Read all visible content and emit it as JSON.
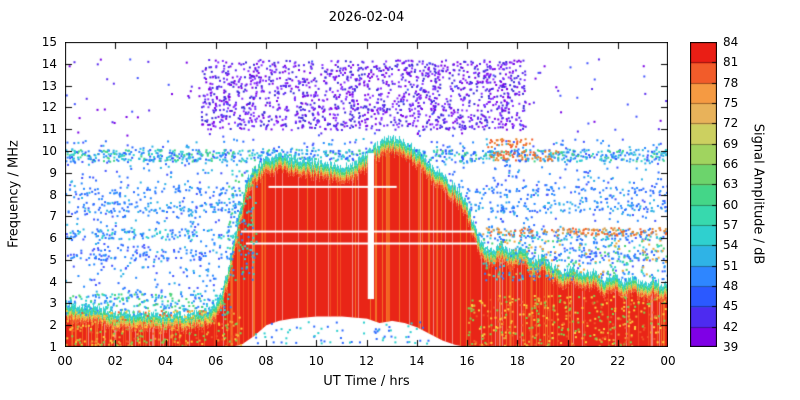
{
  "figure": {
    "background": "#ffffff"
  },
  "chart_data": {
    "type": "heatmap",
    "title": "2026-02-04",
    "xlabel": "UT Time / hrs",
    "ylabel": "Frequency / MHz",
    "xlim": [
      0,
      24
    ],
    "ylim": [
      1,
      15
    ],
    "grid": false,
    "x_tick_labels": [
      "00",
      "02",
      "04",
      "06",
      "08",
      "10",
      "12",
      "14",
      "16",
      "18",
      "20",
      "22",
      "00"
    ],
    "x_tick_values": [
      0,
      2,
      4,
      6,
      8,
      10,
      12,
      14,
      16,
      18,
      20,
      22,
      24
    ],
    "y_tick_values": [
      1,
      2,
      3,
      4,
      5,
      6,
      7,
      8,
      9,
      10,
      11,
      12,
      13,
      14,
      15
    ],
    "colorbar": {
      "label": "Signal Amplitude / dB",
      "min": 39,
      "max": 84,
      "step": 3,
      "ticks": [
        39,
        42,
        45,
        48,
        51,
        54,
        57,
        60,
        63,
        66,
        69,
        72,
        75,
        78,
        81,
        84
      ],
      "colors": [
        "#7f00e6",
        "#4d2bf0",
        "#2b59ff",
        "#2e86ff",
        "#2fb3e6",
        "#2fd0cf",
        "#37d9ae",
        "#44d688",
        "#6cd46c",
        "#a0d45f",
        "#ccd060",
        "#e8b25a",
        "#f59a42",
        "#f25c2a",
        "#ea1e15"
      ]
    },
    "echo_region": {
      "description": "ionospheric echo trace: strong red band 1-3 MHz at night, dome up to ~10.6 MHz between ~06:30 and ~16:30 UT",
      "core_color": "#e92517",
      "top_jitter": 0.35,
      "striation_prob": 0.25,
      "striation_alpha": 0.45,
      "striation_colors": [
        "#ffb030",
        "#ffffff",
        "#ff8030",
        "#ffd040"
      ],
      "edge_layers": [
        {
          "color": "#35cfd0",
          "mhz": 0.2
        },
        {
          "color": "#49d477",
          "mhz": 0.14
        },
        {
          "color": "#b8d44f",
          "mhz": 0.1
        },
        {
          "color": "#f0a83c",
          "mhz": 0.12
        },
        {
          "color": "#f2572a",
          "mhz": 0.16
        }
      ],
      "top_edge": [
        [
          0,
          3.0
        ],
        [
          0.5,
          2.9
        ],
        [
          1,
          2.8
        ],
        [
          1.5,
          2.7
        ],
        [
          2,
          2.6
        ],
        [
          3,
          2.5
        ],
        [
          4,
          2.45
        ],
        [
          5,
          2.5
        ],
        [
          5.5,
          2.6
        ],
        [
          6,
          3.0
        ],
        [
          6.3,
          3.8
        ],
        [
          6.6,
          5.2
        ],
        [
          6.9,
          7.0
        ],
        [
          7.2,
          8.6
        ],
        [
          7.5,
          9.2
        ],
        [
          8,
          9.6
        ],
        [
          8.5,
          9.8
        ],
        [
          9,
          9.7
        ],
        [
          9.5,
          9.6
        ],
        [
          10,
          9.5
        ],
        [
          10.5,
          9.4
        ],
        [
          11,
          9.3
        ],
        [
          11.5,
          9.4
        ],
        [
          12,
          9.9
        ],
        [
          12.3,
          10.2
        ],
        [
          12.6,
          10.5
        ],
        [
          13,
          10.6
        ],
        [
          13.4,
          10.5
        ],
        [
          13.8,
          10.2
        ],
        [
          14.2,
          9.8
        ],
        [
          14.6,
          9.3
        ],
        [
          15,
          8.9
        ],
        [
          15.4,
          8.5
        ],
        [
          15.8,
          8.0
        ],
        [
          16.1,
          7.2
        ],
        [
          16.4,
          6.2
        ],
        [
          16.7,
          5.6
        ],
        [
          17,
          5.4
        ],
        [
          17.4,
          5.7
        ],
        [
          17.8,
          5.3
        ],
        [
          18.2,
          5.6
        ],
        [
          18.6,
          5.0
        ],
        [
          19,
          5.2
        ],
        [
          19.4,
          4.7
        ],
        [
          19.8,
          4.4
        ],
        [
          20.2,
          4.7
        ],
        [
          20.6,
          4.3
        ],
        [
          21,
          4.5
        ],
        [
          21.4,
          4.1
        ],
        [
          21.8,
          4.3
        ],
        [
          22.2,
          4.0
        ],
        [
          22.6,
          4.2
        ],
        [
          23,
          3.9
        ],
        [
          23.4,
          4.1
        ],
        [
          23.7,
          3.9
        ],
        [
          24,
          4.0
        ]
      ],
      "bottom_edge": [
        [
          0,
          1.0
        ],
        [
          6,
          1.0
        ],
        [
          6.5,
          1.0
        ],
        [
          7,
          1.1
        ],
        [
          7.5,
          1.5
        ],
        [
          8,
          2.0
        ],
        [
          8.5,
          2.2
        ],
        [
          9,
          2.3
        ],
        [
          10,
          2.4
        ],
        [
          11,
          2.4
        ],
        [
          12,
          2.3
        ],
        [
          12.5,
          2.1
        ],
        [
          13,
          2.2
        ],
        [
          13.5,
          2.1
        ],
        [
          14,
          1.9
        ],
        [
          14.5,
          1.6
        ],
        [
          15,
          1.3
        ],
        [
          15.5,
          1.1
        ],
        [
          16,
          1.0
        ],
        [
          24,
          1.0
        ]
      ],
      "notches": [
        {
          "x0": 12.05,
          "x1": 12.3,
          "y0": 3.2,
          "y1": 9.9
        }
      ]
    },
    "white_lines": [
      {
        "y": 8.35,
        "x0": 8.1,
        "x1": 13.2
      },
      {
        "y": 6.3,
        "x0": 7.0,
        "x1": 16.3
      },
      {
        "y": 5.75,
        "x0": 7.2,
        "x1": 16.4
      }
    ],
    "speckle_bands": [
      {
        "name": "hf-purple-band",
        "x0": 5.4,
        "x1": 18.3,
        "y0": 11.0,
        "y1": 14.2,
        "count": 1500,
        "size": 2,
        "colors": [
          "#7a00e6",
          "#5a2bf0",
          "#8a33ff",
          "#3c2bd9"
        ]
      },
      {
        "name": "hf-purple-sparse",
        "x0": 0,
        "x1": 24,
        "y0": 10.7,
        "y1": 14.4,
        "count": 130,
        "size": 2,
        "colors": [
          "#7a00e6",
          "#5a2bf0",
          "#4455ff"
        ]
      },
      {
        "name": "background-blue-noise",
        "x0": 0,
        "x1": 24,
        "y0": 2.7,
        "y1": 10.6,
        "count": 1500,
        "size": 2,
        "colors": [
          "#2e6bff",
          "#2b8cff",
          "#4455ff",
          "#2fb3e6"
        ]
      },
      {
        "name": "band-10mhz",
        "x0": 0,
        "x1": 24,
        "y0": 9.55,
        "y1": 10.1,
        "count": 800,
        "size": 2,
        "colors": [
          "#2e86ff",
          "#2fd0cf",
          "#44d688",
          "#2b59ff",
          "#2fb3e6"
        ]
      },
      {
        "name": "band-8mhz",
        "x0": 0,
        "x1": 24,
        "y0": 8.0,
        "y1": 8.4,
        "count": 200,
        "size": 2,
        "colors": [
          "#2e6bff",
          "#2b8cff"
        ]
      },
      {
        "name": "band-7mhz",
        "x0": 0,
        "x1": 24,
        "y0": 7.2,
        "y1": 7.7,
        "count": 350,
        "size": 2,
        "colors": [
          "#2e6bff",
          "#2b8cff",
          "#2fb3e6"
        ]
      },
      {
        "name": "band-6mhz",
        "x0": 0,
        "x1": 24,
        "y0": 5.95,
        "y1": 6.45,
        "count": 380,
        "size": 2,
        "colors": [
          "#2e6bff",
          "#2fd0cf",
          "#2b8cff"
        ]
      },
      {
        "name": "band-5mhz",
        "x0": 0,
        "x1": 24,
        "y0": 5.0,
        "y1": 5.5,
        "count": 300,
        "size": 2,
        "colors": [
          "#2e6bff",
          "#4455ff",
          "#2b8cff"
        ]
      }
    ],
    "overlay_speckles": [
      {
        "name": "night-left-edge-spray",
        "x0": 0,
        "x1": 6.6,
        "y0": 2.5,
        "y1": 3.5,
        "count": 260,
        "size": 2,
        "colors": [
          "#2fd0cf",
          "#49d477",
          "#2e86ff"
        ]
      },
      {
        "name": "night-right-edge-spray",
        "x0": 16.6,
        "x1": 24,
        "y0": 4.1,
        "y1": 6.0,
        "count": 300,
        "size": 2,
        "colors": [
          "#2fd0cf",
          "#49d477",
          "#2e86ff",
          "#f0a83c"
        ]
      },
      {
        "name": "sunrise-spray",
        "x0": 6.4,
        "x1": 7.6,
        "y0": 4.0,
        "y1": 9.4,
        "count": 140,
        "size": 2,
        "colors": [
          "#2fd0cf",
          "#2e86ff",
          "#49d477"
        ]
      },
      {
        "name": "night-band-texture-left",
        "x0": 0,
        "x1": 7,
        "y0": 1.0,
        "y1": 2.7,
        "count": 320,
        "size": 2,
        "colors": [
          "#f0a83c",
          "#ffd040",
          "#7fd44f",
          "#f2572a"
        ]
      },
      {
        "name": "night-band-texture-right",
        "x0": 16,
        "x1": 24,
        "y0": 1.0,
        "y1": 3.4,
        "count": 450,
        "size": 2,
        "colors": [
          "#f0a83c",
          "#ffd040",
          "#7fd44f",
          "#f2572a"
        ]
      },
      {
        "name": "day-underside-dots",
        "x0": 7.5,
        "x1": 14.5,
        "y0": 1.2,
        "y1": 2.2,
        "count": 70,
        "size": 2,
        "colors": [
          "#2e6bff",
          "#2fd0cf"
        ]
      },
      {
        "name": "orange-dots-6mhz-evening",
        "x0": 16.6,
        "x1": 24,
        "y0": 6.15,
        "y1": 6.5,
        "count": 130,
        "size": 2,
        "colors": [
          "#e8872a",
          "#f2622d",
          "#d9a04f"
        ]
      },
      {
        "name": "orange-dots-10mhz-evening",
        "x0": 16.8,
        "x1": 19.6,
        "y0": 9.6,
        "y1": 10.05,
        "count": 60,
        "size": 2,
        "colors": [
          "#e8872a",
          "#f2622d"
        ]
      },
      {
        "name": "orange-dots-evening-upper",
        "x0": 16.8,
        "x1": 18.6,
        "y0": 10.2,
        "y1": 10.6,
        "count": 35,
        "size": 2,
        "colors": [
          "#e8872a",
          "#f25c2a"
        ]
      }
    ],
    "seed": 1337
  }
}
